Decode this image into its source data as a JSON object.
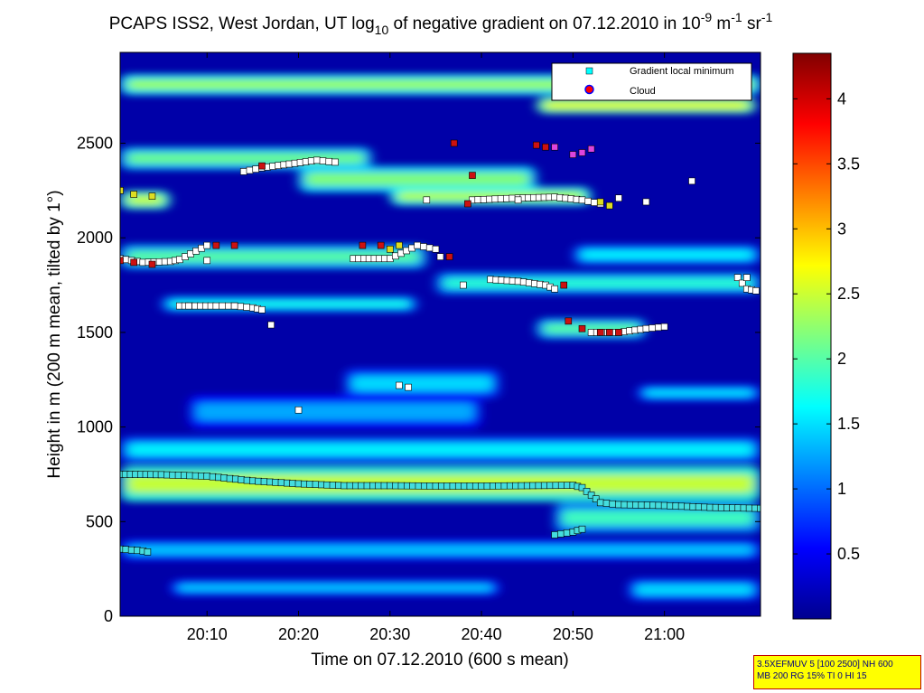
{
  "chart_data": {
    "type": "heatmap",
    "title": {
      "part1": "PCAPS ISS2, West Jordan, UT log",
      "sub1": "10",
      "part2": " of negative gradient on 07.12.2010 in 10",
      "sup1": "-9",
      "part3": " m",
      "sup2": "-1",
      "part4": " sr",
      "sup3": "-1"
    },
    "xlabel": "Time on 07.12.2010 (600 s mean)",
    "ylabel": "Height in m (200 m mean, tilted by 1°)",
    "x_range_minutes": [
      0.5,
      70.5
    ],
    "y_range": [
      0,
      2980
    ],
    "x_ticks": [
      {
        "label": "20:10",
        "minutes": 10
      },
      {
        "label": "20:20",
        "minutes": 20
      },
      {
        "label": "20:30",
        "minutes": 30
      },
      {
        "label": "20:40",
        "minutes": 40
      },
      {
        "label": "20:50",
        "minutes": 50
      },
      {
        "label": "21:00",
        "minutes": 60
      }
    ],
    "y_ticks": [
      0,
      500,
      1000,
      1500,
      2000,
      2500
    ],
    "colorbar": {
      "range": [
        0,
        4.35
      ],
      "colormap": "jet",
      "ticks": [
        0.5,
        1,
        1.5,
        2,
        2.5,
        3,
        3.5,
        4
      ],
      "tick_labels": [
        "0.5",
        "1",
        "1.5",
        "2",
        "2.5",
        "3",
        "3.5",
        "4"
      ]
    },
    "legend": {
      "placement": "top-right",
      "entries": [
        {
          "label": "Gradient local minimum",
          "marker": "square",
          "color": "#00ffff"
        },
        {
          "label": "Cloud",
          "marker": "circle",
          "color": "#ff0000",
          "edge": "#0000ff"
        }
      ]
    },
    "bands": [
      {
        "y": 2810,
        "x": [
          0.5,
          70.5
        ],
        "half": 55,
        "level": 2.3
      },
      {
        "y": 2700,
        "x": [
          46,
          70
        ],
        "half": 45,
        "level": 2.6
      },
      {
        "y": 2420,
        "x": [
          0.5,
          28
        ],
        "half": 60,
        "level": 2.1
      },
      {
        "y": 2310,
        "x": [
          20,
          46
        ],
        "half": 70,
        "level": 2.2
      },
      {
        "y": 2220,
        "x": [
          30,
          52
        ],
        "half": 50,
        "level": 2.4
      },
      {
        "y": 2200,
        "x": [
          0.5,
          6
        ],
        "half": 50,
        "level": 2.5
      },
      {
        "y": 1900,
        "x": [
          0.5,
          34
        ],
        "half": 65,
        "level": 2.0
      },
      {
        "y": 1910,
        "x": [
          50,
          70.5
        ],
        "half": 55,
        "level": 1.6
      },
      {
        "y": 1760,
        "x": [
          35,
          70.5
        ],
        "half": 60,
        "level": 1.8
      },
      {
        "y": 1650,
        "x": [
          5,
          33
        ],
        "half": 45,
        "level": 1.7
      },
      {
        "y": 1520,
        "x": [
          46,
          58
        ],
        "half": 55,
        "level": 2.0
      },
      {
        "y": 1230,
        "x": [
          25,
          42
        ],
        "half": 80,
        "level": 1.5
      },
      {
        "y": 1180,
        "x": [
          57,
          70.5
        ],
        "half": 45,
        "level": 1.5
      },
      {
        "y": 1080,
        "x": [
          8,
          40
        ],
        "half": 90,
        "level": 1.3
      },
      {
        "y": 880,
        "x": [
          0.5,
          70.5
        ],
        "half": 70,
        "level": 1.6
      },
      {
        "y": 700,
        "x": [
          0.5,
          70.5
        ],
        "half": 95,
        "level": 2.5
      },
      {
        "y": 520,
        "x": [
          48,
          70.5
        ],
        "half": 80,
        "level": 1.9
      },
      {
        "y": 350,
        "x": [
          0.5,
          70.5
        ],
        "half": 55,
        "level": 1.4
      },
      {
        "y": 150,
        "x": [
          6,
          42
        ],
        "half": 45,
        "level": 1.4
      },
      {
        "y": 140,
        "x": [
          56,
          70.5
        ],
        "half": 60,
        "level": 1.5
      }
    ],
    "minima_series": [
      {
        "name": "surface",
        "color": "#44dddd",
        "points": [
          [
            0.5,
            750
          ],
          [
            5,
            748
          ],
          [
            10,
            740
          ],
          [
            15,
            715
          ],
          [
            20,
            700
          ],
          [
            25,
            690
          ],
          [
            30,
            690
          ],
          [
            35,
            688
          ],
          [
            40,
            688
          ],
          [
            45,
            690
          ],
          [
            50,
            692
          ],
          [
            51,
            680
          ],
          [
            52,
            640
          ],
          [
            53,
            600
          ],
          [
            55,
            590
          ],
          [
            60,
            585
          ],
          [
            65,
            575
          ],
          [
            70.5,
            570
          ]
        ]
      },
      {
        "name": "low-left",
        "color": "#44dddd",
        "points": [
          [
            0.5,
            355
          ],
          [
            3,
            345
          ],
          [
            3.5,
            340
          ]
        ]
      },
      {
        "name": "low-mid",
        "color": "#44dddd",
        "points": [
          [
            48,
            430
          ],
          [
            50,
            445
          ],
          [
            51,
            460
          ]
        ]
      },
      {
        "name": "mid-1900",
        "color": "#ffffff",
        "points": [
          [
            0.5,
            1890
          ],
          [
            3,
            1870
          ],
          [
            6,
            1875
          ],
          [
            7,
            1885
          ],
          [
            10,
            1960
          ]
        ]
      },
      {
        "name": "mid-1890",
        "color": "#ffffff",
        "points": [
          [
            26,
            1890
          ],
          [
            30,
            1890
          ],
          [
            33,
            1960
          ],
          [
            35,
            1940
          ],
          [
            35.5,
            1900
          ]
        ]
      },
      {
        "name": "layer-2400",
        "color": "#ffffff",
        "points": [
          [
            14,
            2350
          ],
          [
            16,
            2370
          ],
          [
            19,
            2390
          ],
          [
            22,
            2410
          ],
          [
            24,
            2400
          ]
        ]
      },
      {
        "name": "layer-2200",
        "color": "#ffffff",
        "points": [
          [
            39,
            2200
          ],
          [
            44,
            2210
          ],
          [
            48,
            2215
          ],
          [
            51,
            2200
          ],
          [
            53,
            2180
          ]
        ]
      },
      {
        "name": "layer-1650",
        "color": "#ffffff",
        "points": [
          [
            7,
            1640
          ],
          [
            11,
            1640
          ],
          [
            13,
            1640
          ],
          [
            15,
            1630
          ],
          [
            16,
            1620
          ]
        ]
      },
      {
        "name": "layer-1780",
        "color": "#ffffff",
        "points": [
          [
            41,
            1780
          ],
          [
            44,
            1770
          ],
          [
            47,
            1750
          ],
          [
            48,
            1730
          ]
        ]
      },
      {
        "name": "layer-1500",
        "color": "#ffffff",
        "points": [
          [
            52,
            1500
          ],
          [
            55,
            1500
          ],
          [
            58,
            1520
          ],
          [
            60,
            1530
          ]
        ]
      },
      {
        "name": "top-right",
        "color": "#ffffff",
        "points": [
          [
            68,
            1790
          ],
          [
            69,
            1730
          ],
          [
            70,
            1720
          ]
        ]
      }
    ],
    "cloud_series": [
      {
        "color": "#cc1111",
        "points": [
          [
            0.5,
            1880
          ],
          [
            2,
            1870
          ],
          [
            4,
            1860
          ],
          [
            11,
            1960
          ],
          [
            13,
            1960
          ],
          [
            16,
            2380
          ],
          [
            27,
            1960
          ],
          [
            29,
            1960
          ],
          [
            36.5,
            1900
          ],
          [
            37,
            2500
          ],
          [
            38.5,
            2180
          ],
          [
            39,
            2330
          ],
          [
            46,
            2490
          ],
          [
            47,
            2480
          ],
          [
            49,
            1750
          ],
          [
            49.5,
            1560
          ],
          [
            51,
            1520
          ],
          [
            53,
            1500
          ],
          [
            54,
            1500
          ],
          [
            55,
            1500
          ]
        ]
      },
      {
        "color": "#dd44dd",
        "points": [
          [
            48,
            2480
          ],
          [
            50,
            2440
          ],
          [
            51,
            2450
          ],
          [
            52,
            2470
          ]
        ]
      },
      {
        "color": "#dddd22",
        "points": [
          [
            0.5,
            2250
          ],
          [
            2,
            2230
          ],
          [
            4,
            2220
          ],
          [
            30,
            1940
          ],
          [
            31,
            1960
          ],
          [
            53,
            2190
          ],
          [
            54,
            2170
          ]
        ]
      }
    ],
    "white_outliers": [
      [
        8,
        1640
      ],
      [
        10,
        1880
      ],
      [
        13,
        1640
      ],
      [
        17,
        1540
      ],
      [
        20,
        1090
      ],
      [
        31,
        1220
      ],
      [
        32,
        1210
      ],
      [
        34,
        2200
      ],
      [
        38,
        1750
      ],
      [
        44,
        2200
      ],
      [
        55,
        2210
      ],
      [
        58,
        2190
      ],
      [
        63,
        2300
      ],
      [
        69,
        1790
      ]
    ]
  },
  "stamp": {
    "line1": "3.5XEFMUV 5 [100 2500] NH 600",
    "line2": "MB 200 RG 15% TI 0 HI 15"
  }
}
